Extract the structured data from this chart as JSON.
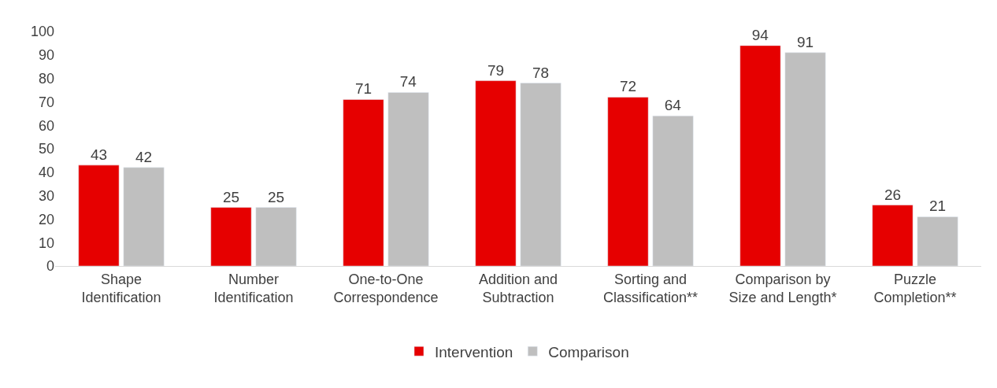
{
  "chart_data": {
    "type": "bar",
    "categories": [
      "Shape Identification",
      "Number Identification",
      "One-to-One Correspondence",
      "Addition and Subtraction",
      "Sorting and Classification**",
      "Comparison by Size and Length*",
      "Puzzle Completion**"
    ],
    "series": [
      {
        "name": "Intervention",
        "color": "#e60000",
        "values": [
          43,
          25,
          71,
          79,
          72,
          94,
          26
        ]
      },
      {
        "name": "Comparison",
        "color": "#bfbfbf",
        "values": [
          42,
          25,
          74,
          78,
          64,
          91,
          21
        ]
      }
    ],
    "ylim": [
      0,
      100
    ],
    "yticks": [
      0,
      10,
      20,
      30,
      40,
      50,
      60,
      70,
      80,
      90,
      100
    ],
    "data_labels": true,
    "grid": false,
    "legend": "bottom"
  }
}
